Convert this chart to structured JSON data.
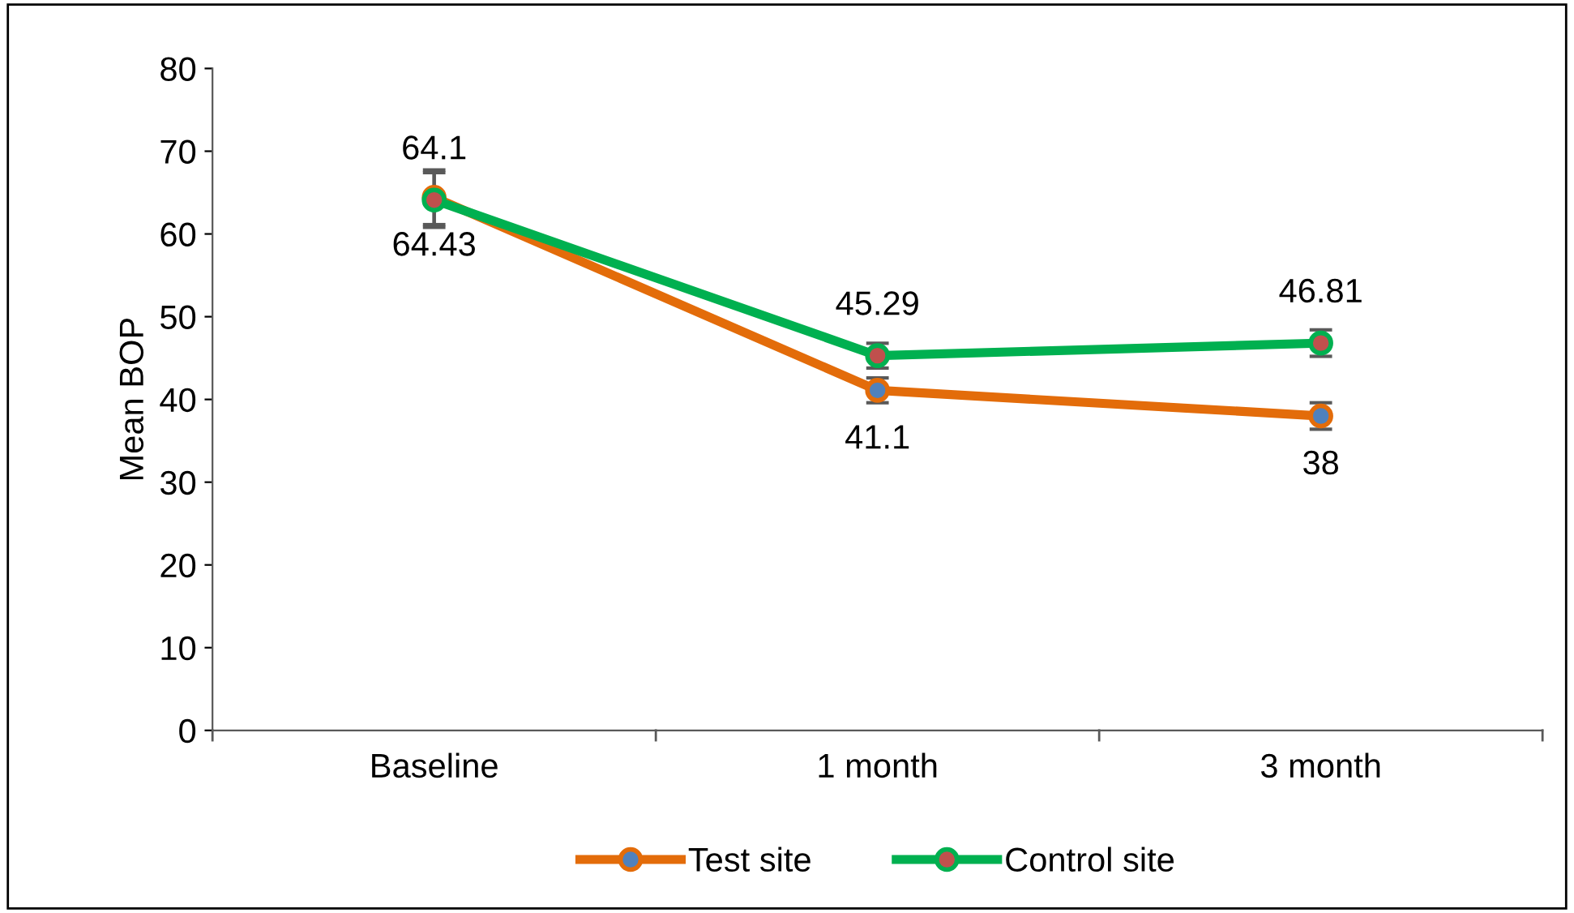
{
  "chart_data": {
    "type": "line",
    "ylabel": "Mean BOP",
    "categories": [
      "Baseline",
      "1 month",
      "3 month"
    ],
    "series": [
      {
        "name": "Test site",
        "color": "#e36c0a",
        "colors": [
          "#4f81bd",
          "#4f81bd",
          "#4f81bd"
        ],
        "values": [
          64.43,
          41.1,
          38
        ],
        "errors": [
          3.3,
          1.5,
          1.6
        ]
      },
      {
        "name": "Control site",
        "color": "#00b050",
        "colors": [
          "#c0504d",
          "#c0504d",
          "#c0504d"
        ],
        "values": [
          64.1,
          45.29,
          46.81
        ],
        "errors": [
          3.3,
          1.5,
          1.6
        ]
      }
    ],
    "ylim": [
      0,
      80
    ],
    "yticks": [
      0,
      10,
      20,
      30,
      40,
      50,
      60,
      70,
      80
    ],
    "grid": false,
    "legend": "bottom",
    "marker": "circle",
    "line_style": "solid",
    "data_labels": true
  }
}
